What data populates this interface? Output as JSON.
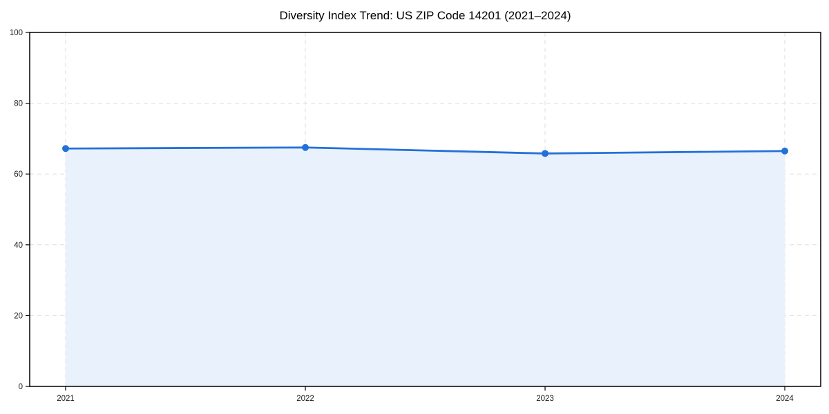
{
  "page": {
    "background": "#ffffff"
  },
  "chart_data": {
    "type": "area",
    "title": "Diversity Index Trend: US ZIP Code 14201 (2021–2024)",
    "categories": [
      "2021",
      "2022",
      "2023",
      "2024"
    ],
    "series": [
      {
        "name": "Diversity Index",
        "values": [
          67.2,
          67.5,
          65.8,
          66.5
        ]
      }
    ],
    "xlabel": "",
    "ylabel": "",
    "ylim": [
      0,
      100
    ],
    "yticks": [
      0,
      20,
      40,
      60,
      80,
      100
    ],
    "grid": true,
    "grid_style": "dashed",
    "legend": false,
    "frame": "full-box",
    "colors": {
      "line": "#2271d8",
      "marker": "#2271d8",
      "fill": "#e9f1fc",
      "grid": "#dddddd",
      "axis": "#000000",
      "tick_label": "#1a1a1a",
      "title": "#000000"
    }
  }
}
